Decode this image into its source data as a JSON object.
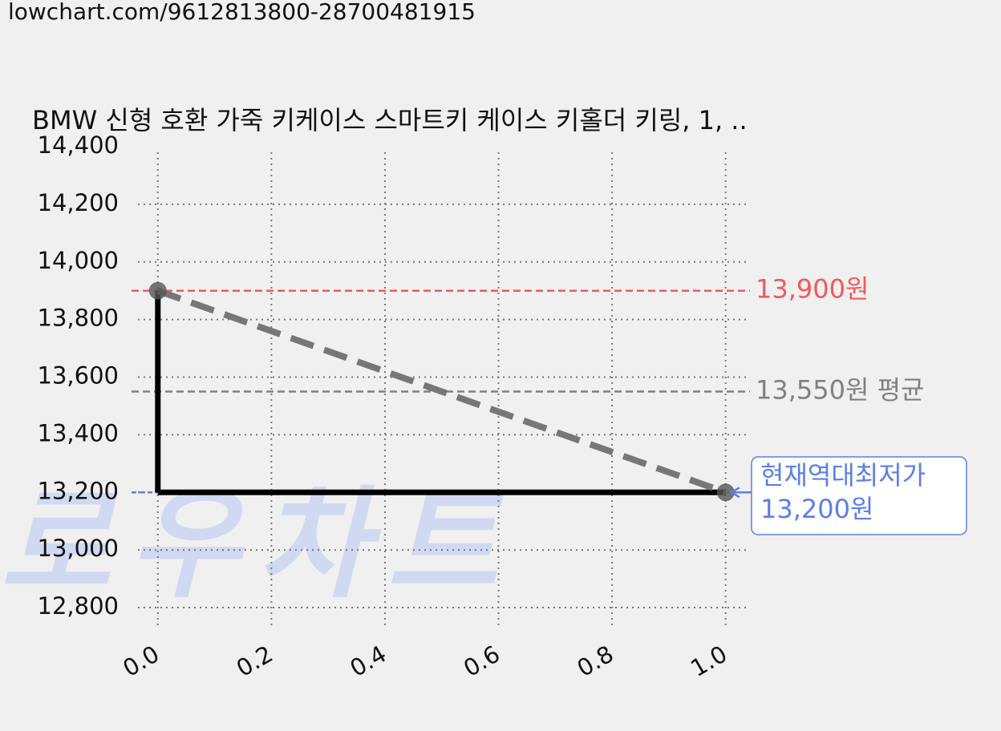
{
  "url": "lowchart.com/9612813800-28700481915",
  "chart_data": {
    "type": "line",
    "title": "BMW 신형 호환 가죽 키케이스 스마트키 케이스 키홀더 키링, 1, ..",
    "watermark": "로우차트",
    "x": [
      0,
      1
    ],
    "values": [
      13900,
      13200
    ],
    "line_color": "#777777",
    "step_color": "#000000",
    "marker_color": "#555555",
    "xlim": [
      -0.035,
      1.04
    ],
    "ylim": [
      12725,
      14400
    ],
    "xticks": [
      {
        "value": 0,
        "label": "0.0"
      },
      {
        "value": 0.2,
        "label": "0.2"
      },
      {
        "value": 0.4,
        "label": "0.4"
      },
      {
        "value": 0.6,
        "label": "0.6"
      },
      {
        "value": 0.8,
        "label": "0.8"
      },
      {
        "value": 1,
        "label": "1.0"
      }
    ],
    "yticks": [
      {
        "value": 12800,
        "label": "12,800"
      },
      {
        "value": 13000,
        "label": "13,000"
      },
      {
        "value": 13200,
        "label": "13,200"
      },
      {
        "value": 13400,
        "label": "13,400"
      },
      {
        "value": 13600,
        "label": "13,600"
      },
      {
        "value": 13800,
        "label": "13,800"
      },
      {
        "value": 14000,
        "label": "14,000"
      },
      {
        "value": 14200,
        "label": "14,200"
      },
      {
        "value": 14400,
        "label": "14,400"
      }
    ],
    "grid": true,
    "reference_lines": [
      {
        "value": 13900,
        "label": "13,900원",
        "color": "#f05a5a"
      },
      {
        "value": 13550,
        "label": "13,550원 평균",
        "color": "#808080"
      }
    ],
    "current": {
      "value": 13200,
      "label_lines": [
        "현재역대최저가",
        "13,200원"
      ],
      "color": "#5b7fe8"
    }
  }
}
